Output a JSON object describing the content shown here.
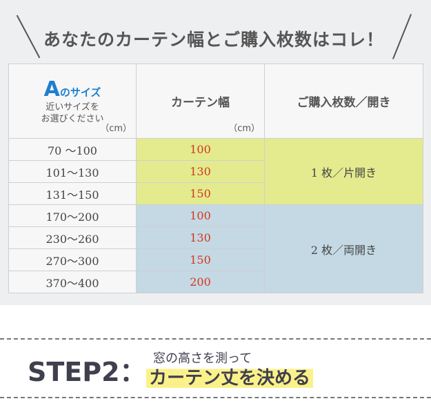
{
  "title": {
    "main": "あなたのカーテン幅とご購入枚数はコレ！"
  },
  "header": {
    "a_letter": "A",
    "a_suffix": "のサイズ",
    "a_note1": "近いサイズを",
    "a_note2": "お選びください",
    "a_unit": "（cm）",
    "width_label": "カーテン幅",
    "width_unit": "（cm）",
    "qty_label": "ご購入枚数／開き"
  },
  "rows": [
    {
      "range": "70 ～100",
      "width": "100"
    },
    {
      "range": "101～130",
      "width": "130"
    },
    {
      "range": "131～150",
      "width": "150"
    },
    {
      "range": "170～200",
      "width": "100"
    },
    {
      "range": "230～260",
      "width": "130"
    },
    {
      "range": "270～300",
      "width": "150"
    },
    {
      "range": "370～400",
      "width": "200"
    }
  ],
  "groups": [
    {
      "label": "1 枚／片開き",
      "color": "#e3eb8e"
    },
    {
      "label": "2 枚／両開き",
      "color": "#c4d9e4"
    }
  ],
  "step": {
    "label": "STEP2：",
    "line1": "窓の高さを測って",
    "line2": "カーテン丈を決める"
  }
}
